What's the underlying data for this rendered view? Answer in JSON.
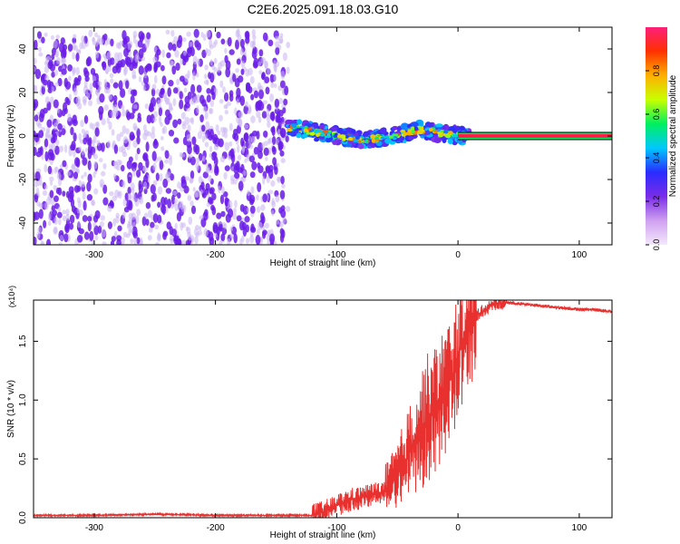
{
  "figure": {
    "title": "C2E6.2025.091.18.03.G10"
  },
  "colors": {
    "snr_line": "#e8302e",
    "constant_band": "#ff1e46",
    "noise_strong": "#6a1ce8",
    "noise_light": "#cbb4f2"
  },
  "chart_data": [
    {
      "type": "heatmap",
      "xlabel": "Height of straight line (km)",
      "ylabel": "Frequency (Hz)",
      "xlim": [
        -350,
        127
      ],
      "ylim": [
        -50,
        50
      ],
      "xticks": [
        -300,
        -200,
        -100,
        0,
        100
      ],
      "yticks": [
        -40,
        -20,
        0,
        20,
        40
      ],
      "colorbar": {
        "label": "Normalized spectral amplitude",
        "range": [
          0.0,
          1.0
        ],
        "ticks": [
          0.0,
          0.2,
          0.4,
          0.6,
          0.8
        ],
        "stops": [
          "#f4e8fb",
          "#cfa0f0",
          "#7a2ce8",
          "#2a2cff",
          "#00c8ff",
          "#00f060",
          "#c8ff00",
          "#ffb000",
          "#ff3000",
          "#ff1f7a"
        ],
        "placement": "right"
      },
      "regions": [
        {
          "name": "noise",
          "x_range": [
            -350,
            -140
          ],
          "y_range": [
            -50,
            48
          ],
          "amplitude_range": [
            0.05,
            0.25
          ]
        },
        {
          "name": "signal_track",
          "x_range": [
            -140,
            10
          ],
          "frequency_center": [
            4,
            2,
            0,
            -2,
            0,
            3,
            1,
            0
          ],
          "amplitude_range": [
            0.3,
            0.9
          ]
        },
        {
          "name": "constant_tone",
          "x_range": [
            0,
            127
          ],
          "frequency": 0,
          "amplitude": 0.98
        }
      ],
      "grid": false
    },
    {
      "type": "line",
      "xlabel": "Height of straight line (km)",
      "ylabel": "SNR (10 * v/v)",
      "y_multiplier_label": "(x10⁴)",
      "xlim": [
        -350,
        127
      ],
      "ylim": [
        0,
        1.85
      ],
      "xticks": [
        -300,
        -200,
        -100,
        0,
        100
      ],
      "yticks": [
        0.0,
        0.5,
        1.0,
        1.5
      ],
      "ytick_labels": [
        "0.0",
        "0.5",
        "1.0",
        "1.5"
      ],
      "series": [
        {
          "x": [
            -350,
            -300,
            -250,
            -200,
            -150,
            -120,
            -110,
            -100,
            -90,
            -80,
            -70,
            -60,
            -55,
            -50,
            -45,
            -40,
            -35,
            -30,
            -25,
            -20,
            -15,
            -10,
            -5,
            0,
            5,
            10,
            15,
            20,
            25,
            30,
            35,
            40,
            50,
            60,
            70,
            80,
            90,
            100,
            110,
            120,
            127
          ],
          "y": [
            0.02,
            0.02,
            0.03,
            0.02,
            0.02,
            0.02,
            0.05,
            0.1,
            0.15,
            0.17,
            0.2,
            0.22,
            0.28,
            0.35,
            0.45,
            0.55,
            0.65,
            0.75,
            0.85,
            0.9,
            1.0,
            1.1,
            1.2,
            1.35,
            1.55,
            1.65,
            1.72,
            1.75,
            1.79,
            1.82,
            1.83,
            1.83,
            1.82,
            1.81,
            1.8,
            1.79,
            1.78,
            1.77,
            1.77,
            1.76,
            1.75
          ]
        }
      ],
      "grid": false
    }
  ]
}
